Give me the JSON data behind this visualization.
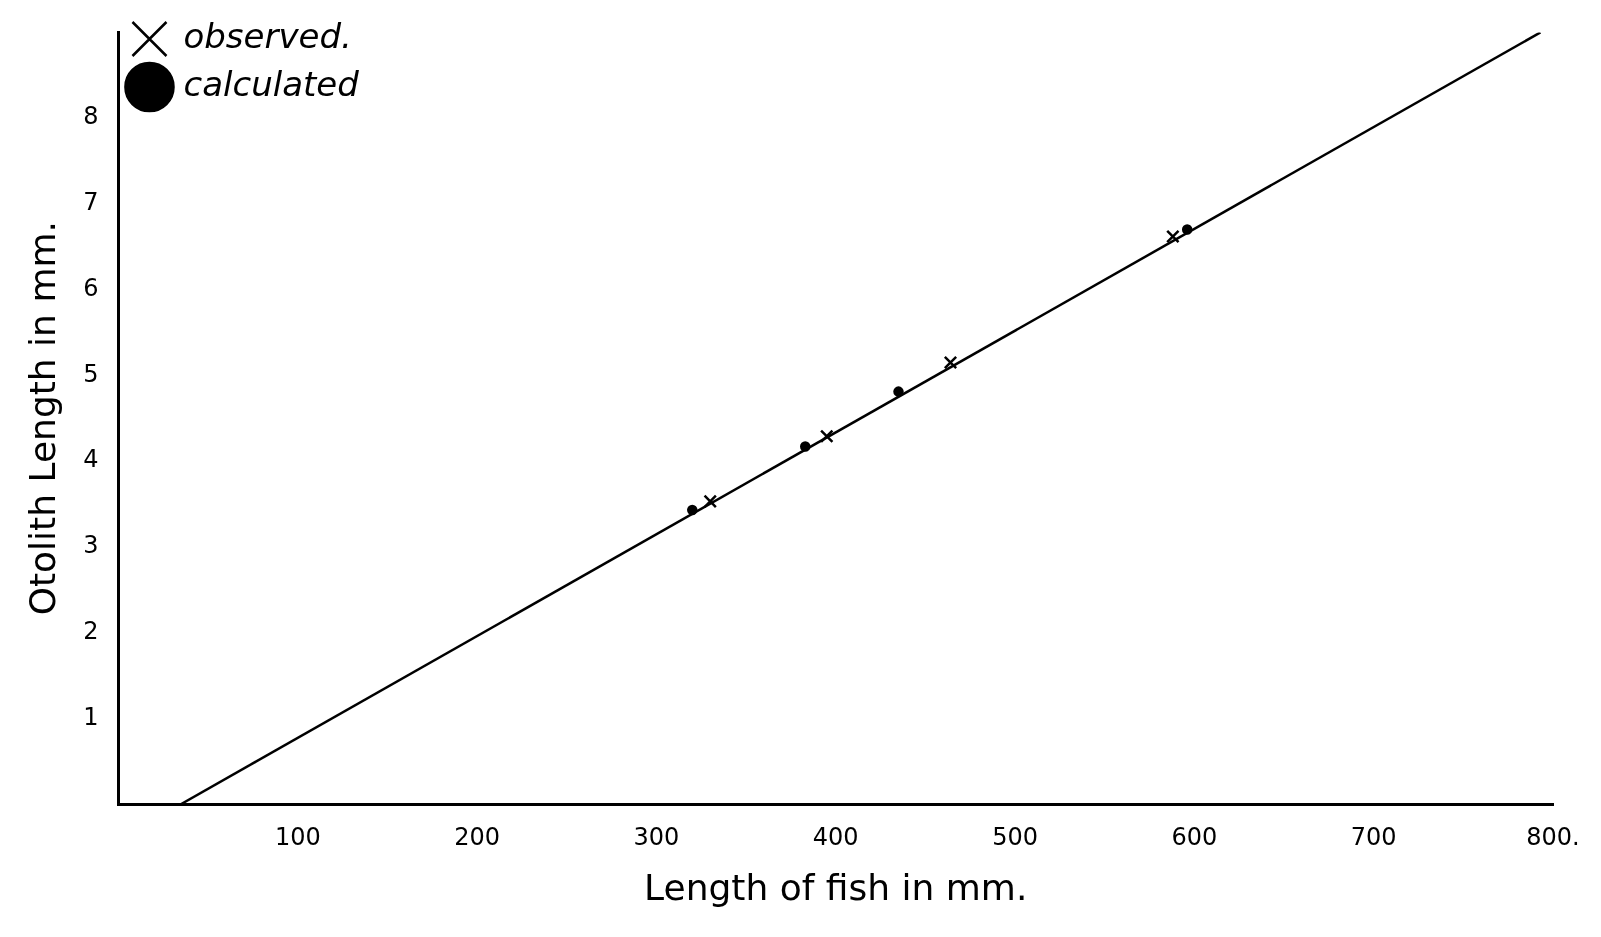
{
  "chart_data": {
    "type": "scatter",
    "xlabel": "Length of fish in mm.",
    "ylabel": "Otolith Length in mm.",
    "xlim": [
      0,
      800
    ],
    "xticks": [
      100,
      200,
      300,
      400,
      500,
      600,
      700,
      {
        "value": 800,
        "label": "800."
      }
    ],
    "ylim": [
      0,
      9
    ],
    "yticks": [
      1,
      2,
      3,
      4,
      5,
      6,
      7,
      8
    ],
    "grid": false,
    "legend": "top left",
    "series": [
      {
        "name": "observed.",
        "type": "scatter",
        "marker": "cross",
        "color": "#000000",
        "x": [
          330,
          395,
          464,
          588
        ],
        "values": [
          3.53,
          4.29,
          5.15,
          6.62
        ]
      },
      {
        "name": "calculated",
        "type": "scatter",
        "marker": "circle",
        "color": "#000000",
        "x": [
          320,
          383,
          435,
          596
        ],
        "values": [
          3.43,
          4.17,
          4.81,
          6.7
        ]
      },
      {
        "type": "line",
        "marker": "none",
        "line_style": "solid",
        "color": "#000000",
        "x": [
          35,
          793
        ],
        "values": [
          0,
          9
        ]
      }
    ]
  }
}
